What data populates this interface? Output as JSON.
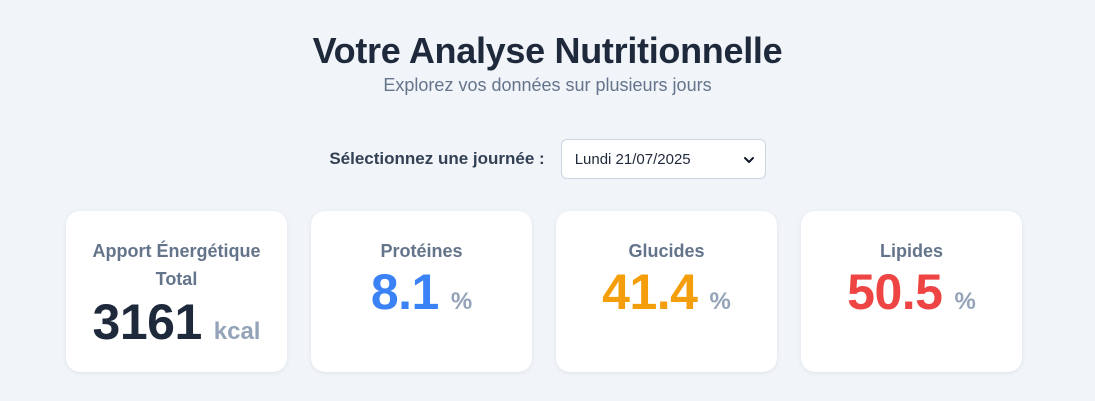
{
  "header": {
    "title": "Votre Analyse Nutritionnelle",
    "subtitle": "Explorez vos données sur plusieurs jours"
  },
  "day_selector": {
    "label": "Sélectionnez une journée :",
    "selected": "Lundi 21/07/2025",
    "icon": "chevron-down-icon"
  },
  "cards": {
    "energy": {
      "label": "Apport Énergétique Total",
      "value": "3161",
      "unit": "kcal",
      "color": "#1e293b"
    },
    "proteins": {
      "label": "Protéines",
      "value": "8.1",
      "unit": "%",
      "color": "#3b82f6"
    },
    "carbs": {
      "label": "Glucides",
      "value": "41.4",
      "unit": "%",
      "color": "#f59e0b"
    },
    "lipids": {
      "label": "Lipides",
      "value": "50.5",
      "unit": "%",
      "color": "#ef4444"
    }
  }
}
